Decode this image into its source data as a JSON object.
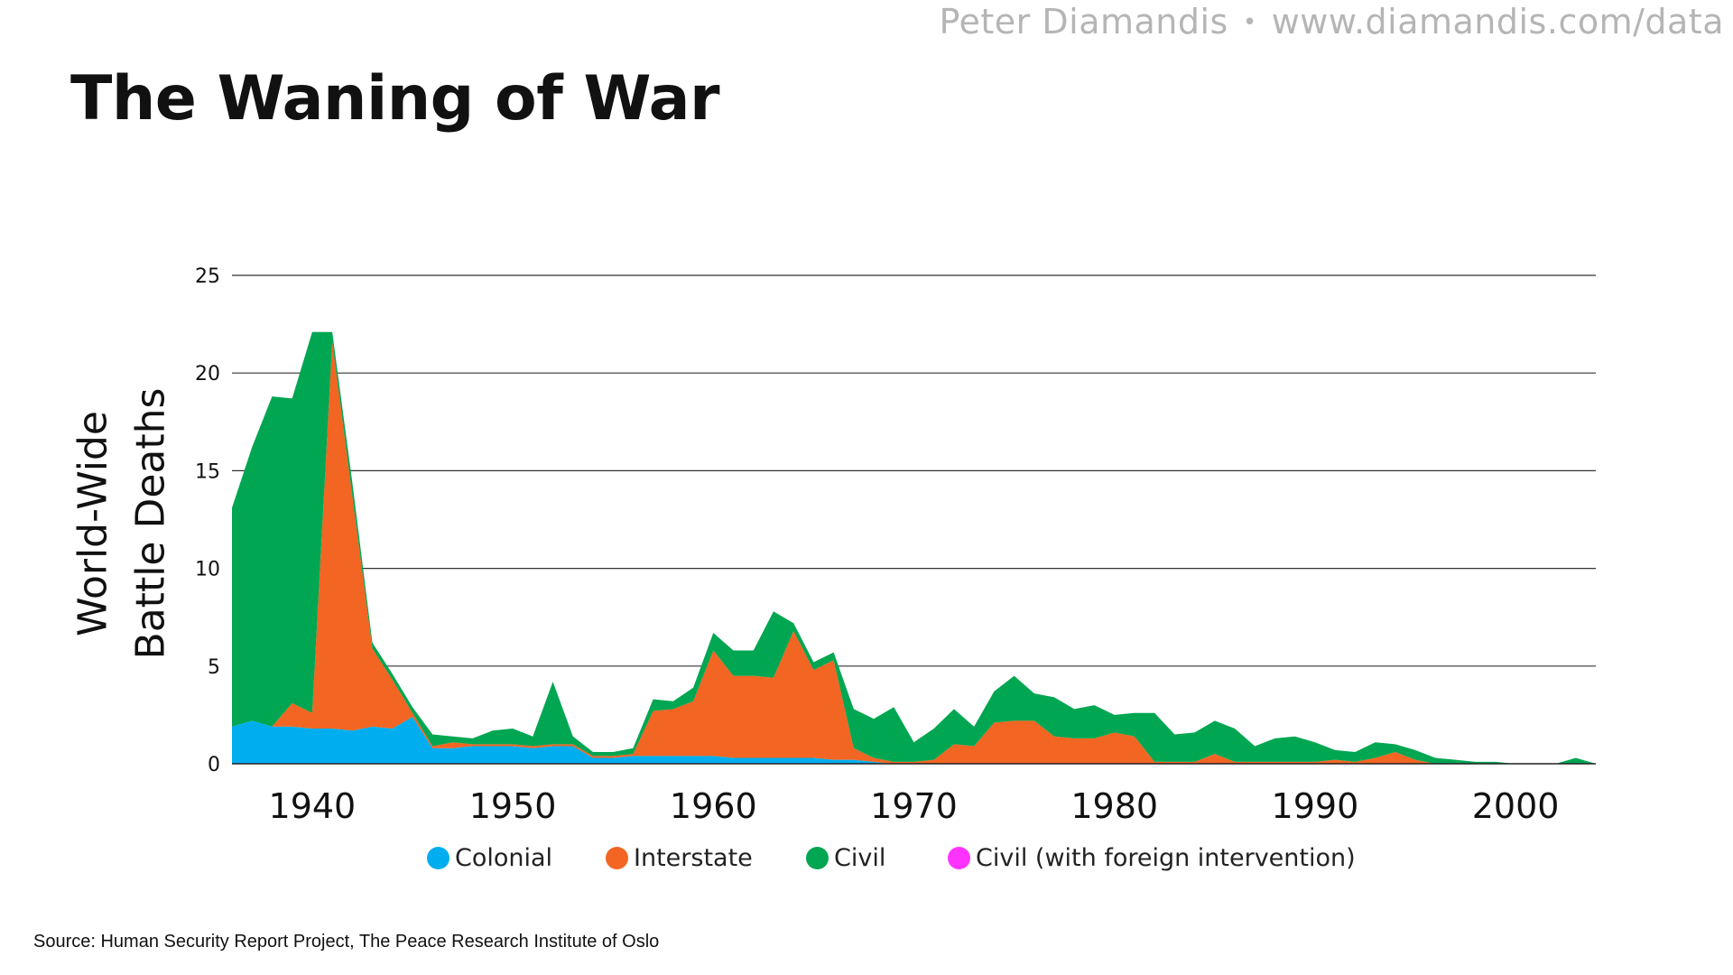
{
  "header": {
    "brand_name": "Peter Diamandis",
    "brand_separator": "•",
    "brand_url": "www.diamandis.com/data"
  },
  "source_note": "Source: Human Security Report Project, The Peace Research Institute of Oslo",
  "chart_data": {
    "type": "area",
    "stacked": true,
    "title": "The Waning of War",
    "xlabel": "",
    "ylabel_lines": [
      "World-Wide",
      "Battle Deaths"
    ],
    "xlim": [
      1936,
      2004
    ],
    "ylim": [
      0,
      25
    ],
    "x_ticks": [
      1940,
      1950,
      1960,
      1970,
      1980,
      1990,
      2000
    ],
    "y_ticks": [
      0,
      5,
      10,
      15,
      20,
      25
    ],
    "grid": true,
    "legend_position": "bottom",
    "x": [
      1936,
      1937,
      1938,
      1939,
      1940,
      1941,
      1942,
      1943,
      1944,
      1945,
      1946,
      1947,
      1948,
      1949,
      1950,
      1951,
      1952,
      1953,
      1954,
      1955,
      1956,
      1957,
      1958,
      1959,
      1960,
      1961,
      1962,
      1963,
      1964,
      1965,
      1966,
      1967,
      1968,
      1969,
      1970,
      1971,
      1972,
      1973,
      1974,
      1975,
      1976,
      1977,
      1978,
      1979,
      1980,
      1981,
      1982,
      1983,
      1984,
      1985,
      1986,
      1987,
      1988,
      1989,
      1990,
      1991,
      1992,
      1993,
      1994,
      1995,
      1996,
      1997,
      1998,
      1999,
      2000,
      2001,
      2002,
      2003,
      2004
    ],
    "series": [
      {
        "name": "Colonial",
        "color": "#00aeef",
        "values": [
          1.9,
          2.2,
          1.9,
          1.9,
          1.8,
          1.8,
          1.7,
          1.9,
          1.8,
          2.4,
          0.8,
          0.8,
          0.9,
          0.9,
          0.9,
          0.8,
          0.9,
          0.9,
          0.3,
          0.3,
          0.4,
          0.4,
          0.4,
          0.4,
          0.4,
          0.3,
          0.3,
          0.3,
          0.3,
          0.3,
          0.2,
          0.2,
          0.1,
          0,
          0,
          0,
          0,
          0,
          0,
          0,
          0,
          0,
          0,
          0,
          0,
          0,
          0,
          0,
          0,
          0,
          0,
          0,
          0,
          0,
          0,
          0,
          0,
          0,
          0,
          0,
          0,
          0,
          0,
          0,
          0,
          0,
          0,
          0,
          0
        ]
      },
      {
        "name": "Interstate",
        "color": "#f26522",
        "values": [
          0,
          0,
          0,
          1.2,
          0.8,
          19.8,
          12.0,
          4.0,
          2.5,
          0.2,
          0.1,
          0.3,
          0.1,
          0.1,
          0.1,
          0.1,
          0.1,
          0.1,
          0.1,
          0.1,
          0.1,
          2.3,
          2.4,
          2.8,
          5.4,
          4.2,
          4.2,
          4.1,
          6.5,
          4.5,
          5.1,
          0.6,
          0.2,
          0.1,
          0.1,
          0.2,
          1.0,
          0.9,
          2.1,
          2.2,
          2.2,
          1.4,
          1.3,
          1.3,
          1.6,
          1.4,
          0.1,
          0.1,
          0.1,
          0.5,
          0.1,
          0.1,
          0.1,
          0.1,
          0.1,
          0.2,
          0.1,
          0.3,
          0.6,
          0.2,
          0,
          0,
          0,
          0,
          0,
          0,
          0,
          0,
          0
        ]
      },
      {
        "name": "Civil",
        "color": "#00a651",
        "values": [
          11.2,
          14.0,
          16.9,
          15.6,
          19.5,
          0.5,
          0.7,
          0.3,
          0.3,
          0.3,
          0.6,
          0.3,
          0.3,
          0.7,
          0.8,
          0.5,
          3.2,
          0.4,
          0.2,
          0.2,
          0.3,
          0.6,
          0.4,
          0.7,
          0.9,
          1.3,
          1.3,
          3.4,
          0.4,
          0.4,
          0.4,
          2.0,
          2.0,
          2.8,
          1.0,
          1.6,
          1.8,
          1.0,
          1.6,
          2.3,
          1.4,
          2.0,
          1.5,
          1.7,
          0.9,
          1.2,
          2.5,
          1.4,
          1.5,
          1.7,
          1.7,
          0.8,
          1.2,
          1.3,
          1.0,
          0.5,
          0.5,
          0.8,
          0.4,
          0.5,
          0.3,
          0.2,
          0.1,
          0.1,
          0,
          0,
          0,
          0.3,
          0
        ]
      },
      {
        "name": "Civil (with foreign intervention)",
        "color": "#ff33ff",
        "values": [
          0,
          0,
          0,
          0,
          0,
          0,
          0,
          0,
          0,
          0,
          0,
          0,
          0,
          0,
          0,
          0,
          0,
          0,
          0,
          0,
          0,
          0,
          0,
          0,
          0,
          0,
          0,
          0,
          0,
          0,
          0,
          0,
          0,
          0,
          0,
          0,
          0,
          0,
          0,
          0,
          0,
          0,
          0,
          0,
          0,
          0,
          0,
          0,
          0,
          0,
          0,
          0,
          0,
          0,
          0,
          0,
          0,
          0,
          0,
          0,
          0,
          0,
          0,
          0,
          0,
          0,
          0,
          0,
          0
        ]
      }
    ]
  }
}
